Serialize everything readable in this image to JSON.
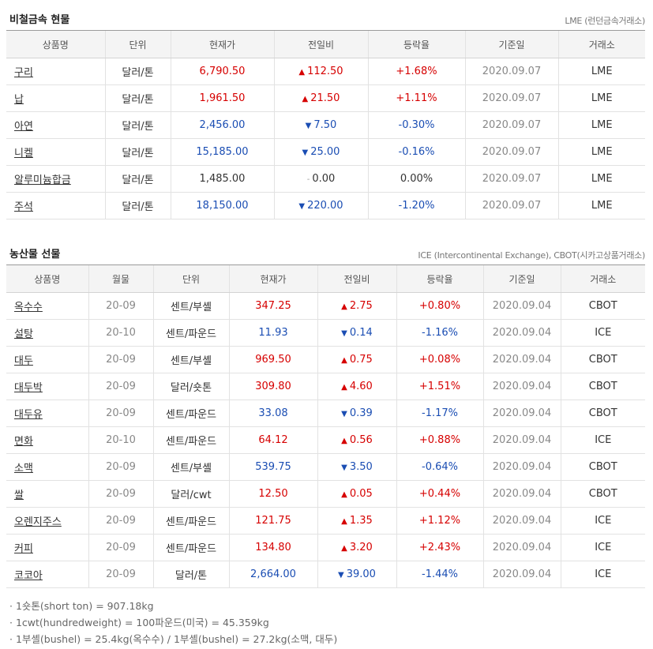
{
  "metals": {
    "title": "비철금속 현물",
    "source": "LME (런던금속거래소)",
    "headers": [
      "상품명",
      "단위",
      "현재가",
      "전일비",
      "등락율",
      "기준일",
      "거래소"
    ],
    "rows": [
      {
        "name": "구리",
        "unit": "달러/톤",
        "price": "6,790.50",
        "dir": "up",
        "change": "112.50",
        "rate": "+1.68%",
        "date": "2020.09.07",
        "exchange": "LME"
      },
      {
        "name": "납",
        "unit": "달러/톤",
        "price": "1,961.50",
        "dir": "up",
        "change": "21.50",
        "rate": "+1.11%",
        "date": "2020.09.07",
        "exchange": "LME"
      },
      {
        "name": "아연",
        "unit": "달러/톤",
        "price": "2,456.00",
        "dir": "down",
        "change": "7.50",
        "rate": "-0.30%",
        "date": "2020.09.07",
        "exchange": "LME"
      },
      {
        "name": "니켈",
        "unit": "달러/톤",
        "price": "15,185.00",
        "dir": "down",
        "change": "25.00",
        "rate": "-0.16%",
        "date": "2020.09.07",
        "exchange": "LME"
      },
      {
        "name": "알루미늄합금",
        "unit": "달러/톤",
        "price": "1,485.00",
        "dir": "flat",
        "change": "0.00",
        "rate": "0.00%",
        "date": "2020.09.07",
        "exchange": "LME"
      },
      {
        "name": "주석",
        "unit": "달러/톤",
        "price": "18,150.00",
        "dir": "down",
        "change": "220.00",
        "rate": "-1.20%",
        "date": "2020.09.07",
        "exchange": "LME"
      }
    ]
  },
  "agri": {
    "title": "농산물 선물",
    "source": "ICE (Intercontinental Exchange), CBOT(시카고상품거래소)",
    "headers": [
      "상품명",
      "월물",
      "단위",
      "현재가",
      "전일비",
      "등락율",
      "기준일",
      "거래소"
    ],
    "rows": [
      {
        "name": "옥수수",
        "month": "20-09",
        "unit": "센트/부셸",
        "price": "347.25",
        "dir": "up",
        "change": "2.75",
        "rate": "+0.80%",
        "date": "2020.09.04",
        "exchange": "CBOT"
      },
      {
        "name": "설탕",
        "month": "20-10",
        "unit": "센트/파운드",
        "price": "11.93",
        "dir": "down",
        "change": "0.14",
        "rate": "-1.16%",
        "date": "2020.09.04",
        "exchange": "ICE"
      },
      {
        "name": "대두",
        "month": "20-09",
        "unit": "센트/부셸",
        "price": "969.50",
        "dir": "up",
        "change": "0.75",
        "rate": "+0.08%",
        "date": "2020.09.04",
        "exchange": "CBOT"
      },
      {
        "name": "대두박",
        "month": "20-09",
        "unit": "달러/숏톤",
        "price": "309.80",
        "dir": "up",
        "change": "4.60",
        "rate": "+1.51%",
        "date": "2020.09.04",
        "exchange": "CBOT"
      },
      {
        "name": "대두유",
        "month": "20-09",
        "unit": "센트/파운드",
        "price": "33.08",
        "dir": "down",
        "change": "0.39",
        "rate": "-1.17%",
        "date": "2020.09.04",
        "exchange": "CBOT"
      },
      {
        "name": "면화",
        "month": "20-10",
        "unit": "센트/파운드",
        "price": "64.12",
        "dir": "up",
        "change": "0.56",
        "rate": "+0.88%",
        "date": "2020.09.04",
        "exchange": "ICE"
      },
      {
        "name": "소맥",
        "month": "20-09",
        "unit": "센트/부셸",
        "price": "539.75",
        "dir": "down",
        "change": "3.50",
        "rate": "-0.64%",
        "date": "2020.09.04",
        "exchange": "CBOT"
      },
      {
        "name": "쌀",
        "month": "20-09",
        "unit": "달러/cwt",
        "price": "12.50",
        "dir": "up",
        "change": "0.05",
        "rate": "+0.44%",
        "date": "2020.09.04",
        "exchange": "CBOT"
      },
      {
        "name": "오렌지주스",
        "month": "20-09",
        "unit": "센트/파운드",
        "price": "121.75",
        "dir": "up",
        "change": "1.35",
        "rate": "+1.12%",
        "date": "2020.09.04",
        "exchange": "ICE"
      },
      {
        "name": "커피",
        "month": "20-09",
        "unit": "센트/파운드",
        "price": "134.80",
        "dir": "up",
        "change": "3.20",
        "rate": "+2.43%",
        "date": "2020.09.04",
        "exchange": "ICE"
      },
      {
        "name": "코코아",
        "month": "20-09",
        "unit": "달러/톤",
        "price": "2,664.00",
        "dir": "down",
        "change": "39.00",
        "rate": "-1.44%",
        "date": "2020.09.04",
        "exchange": "ICE"
      }
    ]
  },
  "arrows": {
    "up": "▲",
    "down": "▼",
    "flat": "-"
  },
  "colors": {
    "up": "#d60000",
    "down": "#1a4db3",
    "flat": "#333333"
  },
  "footnotes": [
    "· 1숏톤(short ton) = 907.18kg",
    "· 1cwt(hundredweight) = 100파운드(미국) = 45.359kg",
    "· 1부셸(bushel) = 25.4kg(옥수수) / 1부셸(bushel) = 27.2kg(소맥, 대두)"
  ]
}
